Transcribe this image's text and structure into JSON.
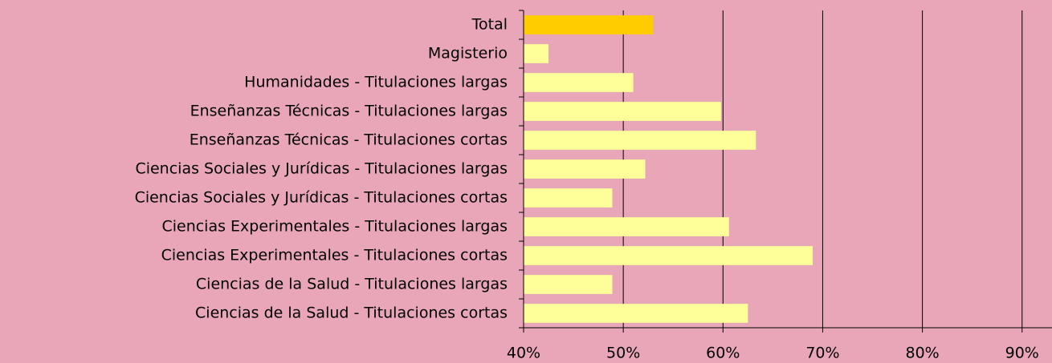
{
  "chart_data": {
    "type": "barh",
    "categories": [
      "Total",
      "Magisterio",
      "Humanidades - Titulaciones largas",
      "Enseñanzas Técnicas - Titulaciones largas",
      "Enseñanzas Técnicas - Titulaciones cortas",
      "Ciencias Sociales y Jurídicas - Titulaciones largas",
      "Ciencias Sociales y Jurídicas - Titulaciones cortas",
      "Ciencias Experimentales - Titulaciones largas",
      "Ciencias Experimentales - Titulaciones cortas",
      "Ciencias de la Salud - Titulaciones largas",
      "Ciencias de la Salud - Titulaciones cortas"
    ],
    "values": [
      53,
      42.5,
      51,
      59.8,
      63.3,
      52.2,
      48.9,
      60.6,
      69,
      48.9,
      62.5
    ],
    "colors": [
      "#ffcc00",
      "#ffff99",
      "#ffff99",
      "#ffff99",
      "#ffff99",
      "#ffff99",
      "#ffff99",
      "#ffff99",
      "#ffff99",
      "#ffff99",
      "#ffff99"
    ],
    "xlim": [
      40,
      93
    ],
    "xticks": [
      {
        "value": 40,
        "label": "40%"
      },
      {
        "value": 50,
        "label": "50%"
      },
      {
        "value": 60,
        "label": "60%"
      },
      {
        "value": 70,
        "label": "70%"
      },
      {
        "value": 80,
        "label": "80%"
      },
      {
        "value": 90,
        "label": "90%"
      }
    ],
    "grid": true
  }
}
